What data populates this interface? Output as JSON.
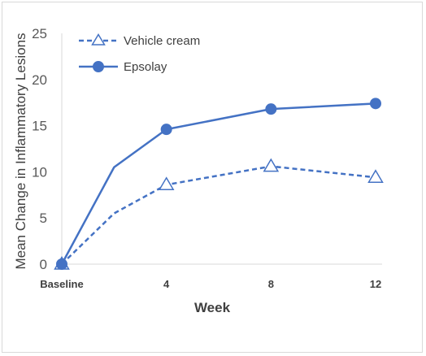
{
  "chart_data": {
    "type": "line",
    "x": [
      "Baseline",
      "",
      "4",
      "",
      "8",
      "",
      "12"
    ],
    "x_values": [
      0,
      2,
      4,
      6,
      8,
      10,
      12
    ],
    "xlabel": "Week",
    "ylabel": "Mean Change in Inflammatory Lesions",
    "ylim": [
      0,
      25
    ],
    "yticks": [
      0,
      5,
      10,
      15,
      20,
      25
    ],
    "grid": false,
    "legend_position": "top-left",
    "series": [
      {
        "name": "Vehicle cream",
        "line_style": "dashed",
        "marker": "open-triangle",
        "color": "#4472C4",
        "points": [
          [
            0,
            0
          ],
          [
            2,
            5.5
          ],
          [
            4,
            8.6
          ],
          [
            8,
            10.6
          ],
          [
            12,
            9.4
          ]
        ],
        "marked": [
          0,
          4,
          8,
          12
        ]
      },
      {
        "name": "Epsolay",
        "line_style": "solid",
        "marker": "filled-circle",
        "color": "#4472C4",
        "points": [
          [
            0,
            0
          ],
          [
            2,
            10.5
          ],
          [
            4,
            14.6
          ],
          [
            8,
            16.8
          ],
          [
            12,
            17.4
          ]
        ],
        "marked": [
          0,
          4,
          8,
          12
        ]
      }
    ]
  }
}
